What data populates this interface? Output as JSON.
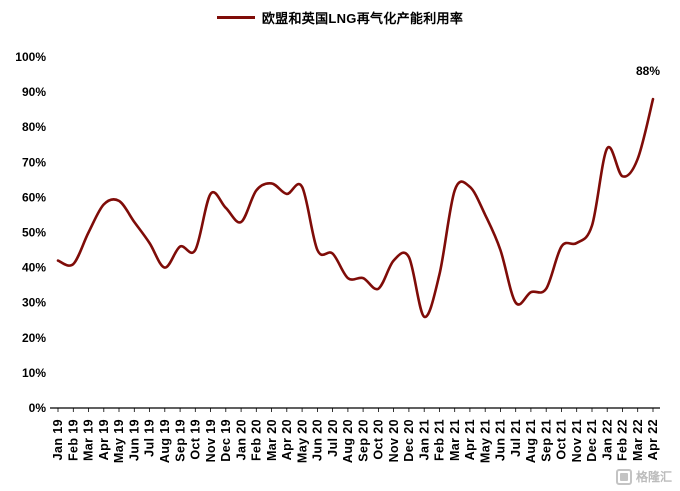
{
  "legend": {
    "label": "欧盟和英国LNG再气化产能利用率"
  },
  "watermark": {
    "text": "格隆汇"
  },
  "colors": {
    "line": "#7f0c08",
    "axis": "#000000",
    "text": "#000000"
  },
  "chart_data": {
    "type": "line",
    "title": "欧盟和英国LNG再气化产能利用率",
    "legend_position": "top",
    "grid": false,
    "line_color": "#7f0c08",
    "ylim": [
      0,
      100
    ],
    "ytick_step": 10,
    "ytick_labels": [
      "0%",
      "10%",
      "20%",
      "30%",
      "40%",
      "50%",
      "60%",
      "70%",
      "80%",
      "90%",
      "100%"
    ],
    "x": [
      "Jan 19",
      "Feb 19",
      "Mar 19",
      "Apr 19",
      "May 19",
      "Jun 19",
      "Jul 19",
      "Aug 19",
      "Sep 19",
      "Oct 19",
      "Nov 19",
      "Dec 19",
      "Jan 20",
      "Feb 20",
      "Mar 20",
      "Apr 20",
      "May 20",
      "Jun 20",
      "Jul 20",
      "Aug 20",
      "Sep 20",
      "Oct 20",
      "Nov 20",
      "Dec 20",
      "Jan 21",
      "Feb 21",
      "Mar 21",
      "Apr 21",
      "May 21",
      "Jun 21",
      "Jul 21",
      "Aug 21",
      "Sep 21",
      "Oct 21",
      "Nov 21",
      "Dec 21",
      "Jan 22",
      "Feb 22",
      "Mar 22",
      "Apr 22"
    ],
    "series": [
      {
        "name": "欧盟和英国LNG再气化产能利用率",
        "values": [
          42,
          41,
          50,
          58,
          59,
          53,
          47,
          40,
          46,
          45,
          61,
          57,
          53,
          62,
          64,
          61,
          63,
          45,
          44,
          37,
          37,
          34,
          42,
          43,
          26,
          38,
          62,
          63,
          55,
          45,
          30,
          33,
          34,
          46,
          47,
          52,
          74,
          66,
          71,
          88
        ]
      }
    ],
    "annotations": [
      {
        "x": "Apr 22",
        "value": 88,
        "label": "88%"
      }
    ]
  }
}
